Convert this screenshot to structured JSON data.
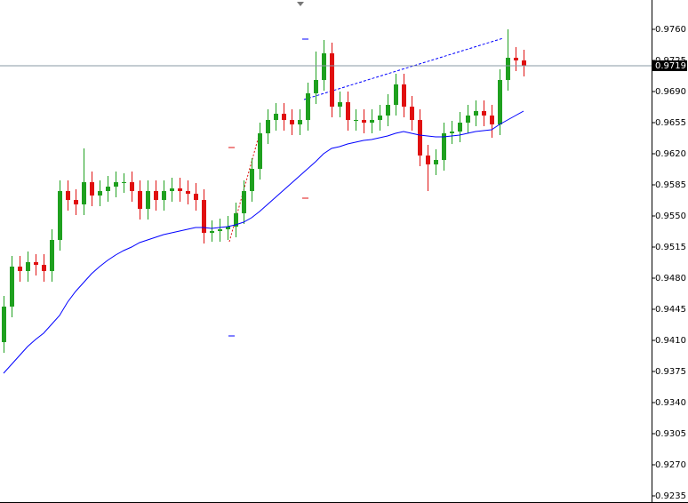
{
  "chart_data": {
    "type": "candlestick",
    "ylim": [
      0.9229,
      0.9793
    ],
    "yticks": [
      {
        "value": 0.976,
        "label": "0.9760"
      },
      0.9725,
      {
        "value": 0.969,
        "label": "0.9690"
      },
      0.9655,
      {
        "value": 0.962,
        "label": "0.9620"
      },
      0.9585,
      {
        "value": 0.955,
        "label": "0.9550"
      },
      0.9515,
      {
        "value": 0.948,
        "label": "0.9480"
      },
      0.9445,
      {
        "value": 0.941,
        "label": "0.9410"
      },
      0.9375,
      {
        "value": 0.934,
        "label": "0.9340"
      },
      0.9305,
      {
        "value": 0.927,
        "label": "0.9270"
      },
      0.9235
    ],
    "current_price": 0.9719,
    "up_color": "#1fa01f",
    "down_color": "#e01010",
    "ma_color": "#0000ff",
    "open": [
      0.9408,
      0.9448,
      0.9493,
      0.9488,
      0.9498,
      0.9495,
      0.9488,
      0.9523,
      0.9578,
      0.9568,
      0.9563,
      0.9588,
      0.9573,
      0.9578,
      0.9583,
      0.9588,
      0.9588,
      0.9578,
      0.9558,
      0.9578,
      0.9568,
      0.9578,
      0.9581,
      0.9578,
      0.9575,
      0.9568,
      0.9531,
      0.9533,
      0.9535,
      0.9538,
      0.9553,
      0.9578,
      0.9603,
      0.9643,
      0.9658,
      0.9665,
      0.9658,
      0.9653,
      0.9658,
      0.9688,
      0.9703,
      0.9733,
      0.9673,
      0.9678,
      0.9658,
      0.9658,
      0.9655,
      0.9658,
      0.9663,
      0.9675,
      0.9698,
      0.9673,
      0.9658,
      0.9618,
      0.9608,
      0.9613,
      0.9643,
      0.9645,
      0.9655,
      0.9663,
      0.9668,
      0.9663,
      0.9653,
      0.9703,
      0.9728,
      0.9725
    ],
    "high": [
      0.946,
      0.9505,
      0.9505,
      0.951,
      0.9507,
      0.9507,
      0.9535,
      0.959,
      0.959,
      0.958,
      0.9626,
      0.96,
      0.959,
      0.9595,
      0.96,
      0.9598,
      0.96,
      0.959,
      0.959,
      0.959,
      0.959,
      0.9593,
      0.9593,
      0.959,
      0.9587,
      0.958,
      0.9545,
      0.9547,
      0.955,
      0.9565,
      0.959,
      0.9615,
      0.9655,
      0.967,
      0.9677,
      0.9677,
      0.967,
      0.967,
      0.97,
      0.9735,
      0.9748,
      0.9745,
      0.969,
      0.969,
      0.967,
      0.967,
      0.967,
      0.9675,
      0.9687,
      0.971,
      0.971,
      0.9685,
      0.967,
      0.963,
      0.9625,
      0.9655,
      0.9657,
      0.9667,
      0.9675,
      0.968,
      0.968,
      0.9675,
      0.9715,
      0.976,
      0.974,
      0.9737
    ],
    "low": [
      0.9396,
      0.9436,
      0.9476,
      0.9476,
      0.9483,
      0.9476,
      0.9476,
      0.9511,
      0.9556,
      0.9551,
      0.9551,
      0.9561,
      0.9561,
      0.9566,
      0.9571,
      0.9576,
      0.9566,
      0.9546,
      0.9546,
      0.9556,
      0.9556,
      0.9566,
      0.9566,
      0.9563,
      0.9556,
      0.9519,
      0.9521,
      0.9521,
      0.9523,
      0.9526,
      0.9541,
      0.9566,
      0.9591,
      0.9631,
      0.9646,
      0.9646,
      0.9641,
      0.9641,
      0.9646,
      0.9676,
      0.9691,
      0.9661,
      0.9661,
      0.9646,
      0.9646,
      0.9643,
      0.9643,
      0.9646,
      0.9651,
      0.9663,
      0.9661,
      0.9646,
      0.9606,
      0.9578,
      0.9596,
      0.9601,
      0.9631,
      0.9633,
      0.9643,
      0.9651,
      0.9651,
      0.9638,
      0.9641,
      0.9691,
      0.9713,
      0.9707
    ],
    "close": [
      0.9448,
      0.9493,
      0.9488,
      0.9498,
      0.9495,
      0.9488,
      0.9523,
      0.9578,
      0.9568,
      0.9563,
      0.9588,
      0.9573,
      0.9578,
      0.9583,
      0.9588,
      0.9588,
      0.9578,
      0.9558,
      0.9578,
      0.9568,
      0.9578,
      0.9581,
      0.9578,
      0.9575,
      0.9568,
      0.9531,
      0.9533,
      0.9535,
      0.9538,
      0.9553,
      0.9578,
      0.9603,
      0.9643,
      0.9658,
      0.9665,
      0.9658,
      0.9653,
      0.9658,
      0.9688,
      0.9703,
      0.9733,
      0.9673,
      0.9678,
      0.9658,
      0.9658,
      0.9655,
      0.9658,
      0.9663,
      0.9675,
      0.9698,
      0.9673,
      0.9658,
      0.9618,
      0.9608,
      0.9613,
      0.9643,
      0.9645,
      0.9655,
      0.9663,
      0.9668,
      0.9663,
      0.9653,
      0.9703,
      0.9728,
      0.9725,
      0.9719
    ],
    "ma": [
      0.9373,
      0.9383,
      0.9393,
      0.9403,
      0.9411,
      0.9418,
      0.9428,
      0.9438,
      0.9453,
      0.9465,
      0.9475,
      0.9485,
      0.9493,
      0.95,
      0.9506,
      0.9511,
      0.9515,
      0.952,
      0.9523,
      0.9526,
      0.9529,
      0.9531,
      0.9533,
      0.9535,
      0.9537,
      0.9537,
      0.9536,
      0.9537,
      0.9538,
      0.954,
      0.9543,
      0.9548,
      0.9555,
      0.9563,
      0.9571,
      0.9579,
      0.9587,
      0.9595,
      0.9603,
      0.9611,
      0.962,
      0.9626,
      0.9628,
      0.9631,
      0.9633,
      0.9635,
      0.9636,
      0.9638,
      0.964,
      0.9643,
      0.9645,
      0.9643,
      0.9641,
      0.964,
      0.9639,
      0.9639,
      0.964,
      0.9641,
      0.9643,
      0.9645,
      0.9646,
      0.9647,
      0.9653,
      0.9658,
      0.9663,
      0.9668
    ]
  }
}
